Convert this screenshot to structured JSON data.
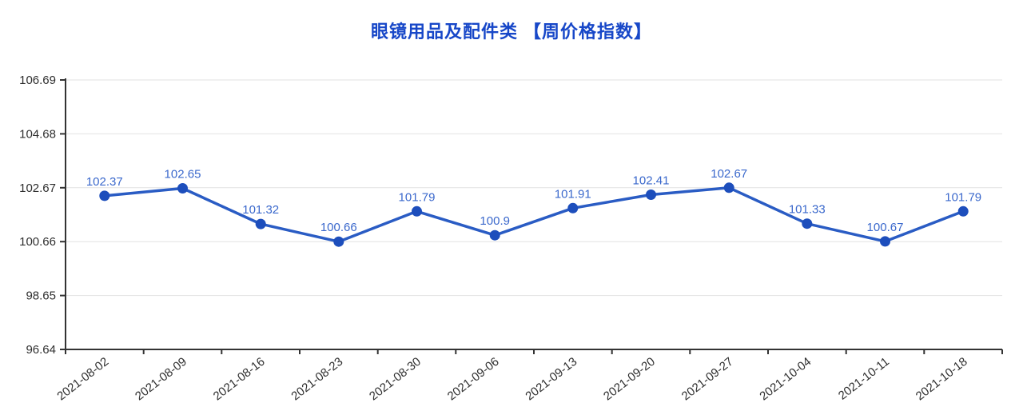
{
  "title": "眼镜用品及配件类 【周价格指数】",
  "colors": {
    "title": "#1747c8",
    "line": "#2a5cc4",
    "marker": "#1d4ebc",
    "point_label": "#3a68cc",
    "axis": "#333333",
    "axis_label": "#2f2f2f",
    "grid": "#e2e2e2",
    "background": "#ffffff"
  },
  "chart_data": {
    "type": "line",
    "title": "眼镜用品及配件类 【周价格指数】",
    "xlabel": "",
    "ylabel": "",
    "categories": [
      "2021-08-02",
      "2021-08-09",
      "2021-08-16",
      "2021-08-23",
      "2021-08-30",
      "2021-09-06",
      "2021-09-13",
      "2021-09-20",
      "2021-09-27",
      "2021-10-04",
      "2021-10-11",
      "2021-10-18"
    ],
    "values": [
      102.37,
      102.65,
      101.32,
      100.66,
      101.79,
      100.9,
      101.91,
      102.41,
      102.67,
      101.33,
      100.67,
      101.79
    ],
    "point_labels": [
      "102.37",
      "102.65",
      "101.32",
      "100.66",
      "101.79",
      "100.9",
      "101.91",
      "102.41",
      "102.67",
      "101.33",
      "100.67",
      "101.79"
    ],
    "y_ticks": [
      96.64,
      98.65,
      100.66,
      102.67,
      104.68,
      106.69
    ],
    "y_tick_labels": [
      "96.64",
      "98.65",
      "100.66",
      "102.67",
      "104.68",
      "106.69"
    ],
    "ylim": [
      96.64,
      106.69
    ],
    "grid": "horizontal",
    "legend": "none",
    "x_label_rotation_deg": -38
  }
}
